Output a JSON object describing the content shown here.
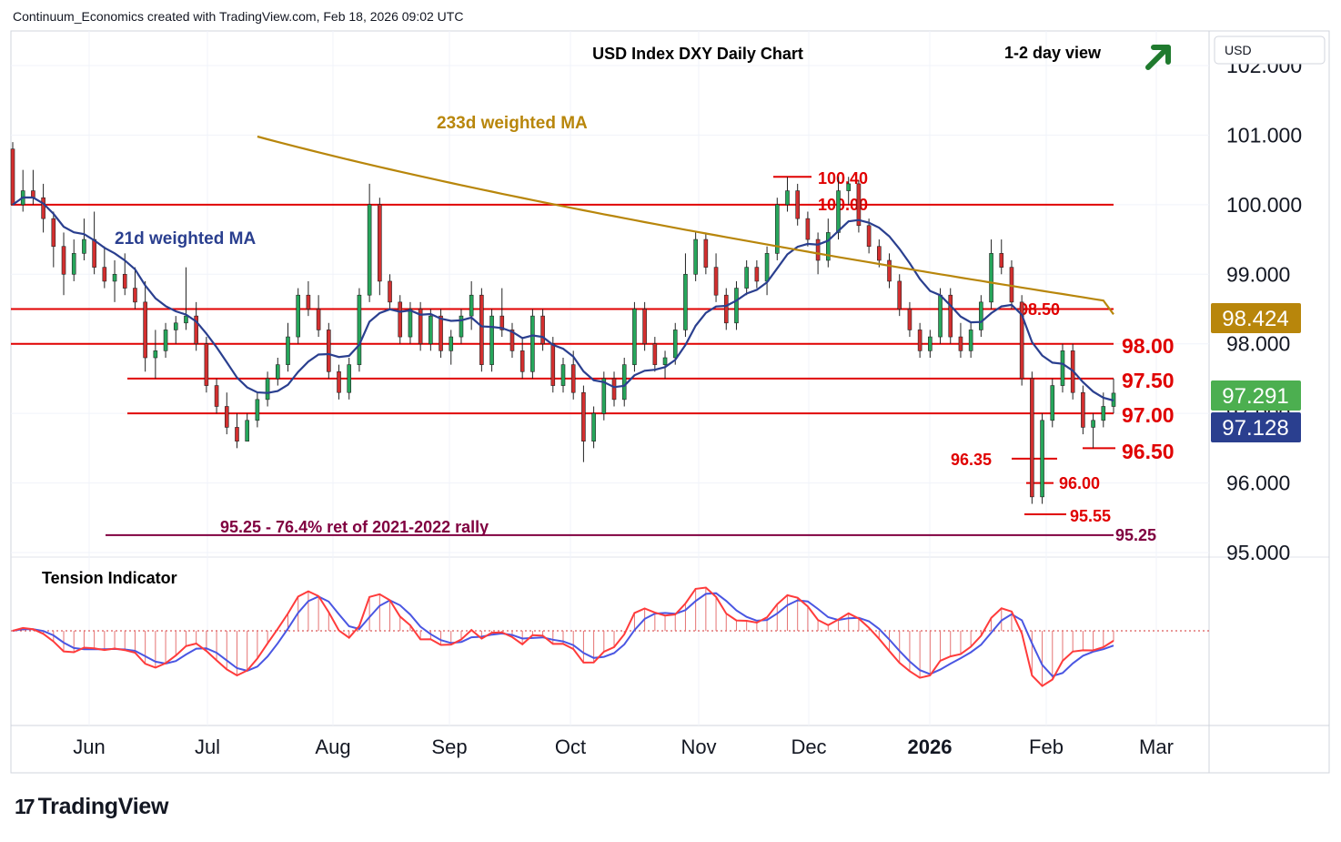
{
  "header": {
    "credit": "Continuum_Economics created with TradingView.com, Feb 18, 2026 09:02 UTC"
  },
  "chart_data": {
    "type": "candlestick",
    "title": "USD Index DXY Daily Chart",
    "view": "1-2 day view",
    "view_direction": "up",
    "symbol": "USD",
    "ylim": [
      95.0,
      102.0
    ],
    "y_ticks": [
      "102.000",
      "101.000",
      "100.000",
      "99.000",
      "98.000",
      "97.000",
      "96.000",
      "95.000"
    ],
    "x_ticks": [
      "Jun",
      "Jul",
      "Aug",
      "Sep",
      "Oct",
      "Nov",
      "Dec",
      "2026",
      "Feb",
      "Mar"
    ],
    "price_badges": [
      {
        "label": "98.424",
        "value": 98.424,
        "color": "#b8860b",
        "text_color": "#ffffff"
      },
      {
        "label": "97.291",
        "value": 97.291,
        "color": "#4caf50",
        "text_color": "#ffffff"
      },
      {
        "label": "97.128",
        "value": 97.128,
        "color": "#2a3f8f",
        "text_color": "#ffffff"
      }
    ],
    "horizontal_levels": [
      {
        "value": 100.0,
        "label": "100.00",
        "color": "#e00000"
      },
      {
        "value": 98.5,
        "label": "98.50",
        "color": "#e00000"
      },
      {
        "value": 98.0,
        "label": "98.00",
        "color": "#e00000"
      },
      {
        "value": 97.5,
        "label": "97.50",
        "color": "#e00000"
      },
      {
        "value": 97.0,
        "label": "97.00",
        "color": "#e00000"
      }
    ],
    "point_levels": [
      {
        "value": 100.4,
        "label": "100.40"
      },
      {
        "value": 96.35,
        "label": "96.35"
      },
      {
        "value": 96.0,
        "label": "96.00"
      },
      {
        "value": 95.55,
        "label": "95.55"
      },
      {
        "value": 96.5,
        "label": "96.50"
      }
    ],
    "retracement": {
      "value": 95.25,
      "label": "95.25 - 76.4% ret of 2021-2022 rally",
      "end_label": "95.25",
      "color": "#800040"
    },
    "series": [
      {
        "name": "233d weighted MA",
        "color": "#b8860b"
      },
      {
        "name": "21d weighted MA",
        "color": "#2a3f8f"
      }
    ],
    "ohlc": [
      [
        100.8,
        100.9,
        100.0,
        100.0
      ],
      [
        100.0,
        100.5,
        99.9,
        100.2
      ],
      [
        100.2,
        100.5,
        100.0,
        100.1
      ],
      [
        100.1,
        100.3,
        99.6,
        99.8
      ],
      [
        99.8,
        99.9,
        99.1,
        99.4
      ],
      [
        99.4,
        99.6,
        98.7,
        99.0
      ],
      [
        99.0,
        99.5,
        98.9,
        99.3
      ],
      [
        99.3,
        99.8,
        99.2,
        99.5
      ],
      [
        99.5,
        99.9,
        99.0,
        99.1
      ],
      [
        99.1,
        99.4,
        98.8,
        98.9
      ],
      [
        98.9,
        99.2,
        98.6,
        99.0
      ],
      [
        99.0,
        99.3,
        98.7,
        98.8
      ],
      [
        98.8,
        99.1,
        98.5,
        98.6
      ],
      [
        98.6,
        98.9,
        97.6,
        97.8
      ],
      [
        97.8,
        98.2,
        97.5,
        97.9
      ],
      [
        97.9,
        98.3,
        97.8,
        98.2
      ],
      [
        98.2,
        98.4,
        98.0,
        98.3
      ],
      [
        98.3,
        99.1,
        98.2,
        98.4
      ],
      [
        98.4,
        98.6,
        97.9,
        98.0
      ],
      [
        98.0,
        98.1,
        97.3,
        97.4
      ],
      [
        97.4,
        97.5,
        97.0,
        97.1
      ],
      [
        97.1,
        97.3,
        96.7,
        96.8
      ],
      [
        96.8,
        97.0,
        96.5,
        96.6
      ],
      [
        96.6,
        97.0,
        96.6,
        96.9
      ],
      [
        96.9,
        97.3,
        96.8,
        97.2
      ],
      [
        97.2,
        97.6,
        97.1,
        97.5
      ],
      [
        97.5,
        97.8,
        97.4,
        97.7
      ],
      [
        97.7,
        98.3,
        97.6,
        98.1
      ],
      [
        98.1,
        98.8,
        98.0,
        98.7
      ],
      [
        98.7,
        98.9,
        98.4,
        98.5
      ],
      [
        98.5,
        98.7,
        98.1,
        98.2
      ],
      [
        98.2,
        98.3,
        97.5,
        97.6
      ],
      [
        97.6,
        97.7,
        97.2,
        97.3
      ],
      [
        97.3,
        97.8,
        97.2,
        97.7
      ],
      [
        97.7,
        98.8,
        97.6,
        98.7
      ],
      [
        98.7,
        100.3,
        98.6,
        100.0
      ],
      [
        100.0,
        100.1,
        98.7,
        98.9
      ],
      [
        98.9,
        99.0,
        98.5,
        98.6
      ],
      [
        98.6,
        98.7,
        98.0,
        98.1
      ],
      [
        98.1,
        98.6,
        98.0,
        98.5
      ],
      [
        98.5,
        98.6,
        97.9,
        98.0
      ],
      [
        98.0,
        98.5,
        97.9,
        98.4
      ],
      [
        98.4,
        98.5,
        97.8,
        97.9
      ],
      [
        97.9,
        98.2,
        97.7,
        98.1
      ],
      [
        98.1,
        98.5,
        98.0,
        98.4
      ],
      [
        98.4,
        98.9,
        98.2,
        98.7
      ],
      [
        98.7,
        98.8,
        97.6,
        97.7
      ],
      [
        97.7,
        98.5,
        97.6,
        98.4
      ],
      [
        98.4,
        98.8,
        98.1,
        98.2
      ],
      [
        98.2,
        98.3,
        97.8,
        97.9
      ],
      [
        97.9,
        98.1,
        97.5,
        97.6
      ],
      [
        97.6,
        98.5,
        97.5,
        98.4
      ],
      [
        98.4,
        98.5,
        97.9,
        98.0
      ],
      [
        98.0,
        98.1,
        97.3,
        97.4
      ],
      [
        97.4,
        97.8,
        97.3,
        97.7
      ],
      [
        97.7,
        97.9,
        97.2,
        97.3
      ],
      [
        97.3,
        97.4,
        96.3,
        96.6
      ],
      [
        96.6,
        97.1,
        96.5,
        97.0
      ],
      [
        97.0,
        97.6,
        96.9,
        97.5
      ],
      [
        97.5,
        97.6,
        97.1,
        97.2
      ],
      [
        97.2,
        97.8,
        97.1,
        97.7
      ],
      [
        97.7,
        98.6,
        97.6,
        98.5
      ],
      [
        98.5,
        98.6,
        97.9,
        98.0
      ],
      [
        98.0,
        98.1,
        97.6,
        97.7
      ],
      [
        97.7,
        97.9,
        97.5,
        97.8
      ],
      [
        97.8,
        98.3,
        97.7,
        98.2
      ],
      [
        98.2,
        99.3,
        98.1,
        99.0
      ],
      [
        99.0,
        99.6,
        98.9,
        99.5
      ],
      [
        99.5,
        99.6,
        99.0,
        99.1
      ],
      [
        99.1,
        99.3,
        98.6,
        98.7
      ],
      [
        98.7,
        98.8,
        98.2,
        98.3
      ],
      [
        98.3,
        98.9,
        98.2,
        98.8
      ],
      [
        98.8,
        99.2,
        98.7,
        99.1
      ],
      [
        99.1,
        99.2,
        98.8,
        98.9
      ],
      [
        98.9,
        99.4,
        98.7,
        99.3
      ],
      [
        99.3,
        100.1,
        99.2,
        100.0
      ],
      [
        100.0,
        100.4,
        99.9,
        100.2
      ],
      [
        100.2,
        100.3,
        99.7,
        99.8
      ],
      [
        99.8,
        99.9,
        99.4,
        99.5
      ],
      [
        99.5,
        99.6,
        99.0,
        99.2
      ],
      [
        99.2,
        99.8,
        99.1,
        99.6
      ],
      [
        99.6,
        100.4,
        99.5,
        100.2
      ],
      [
        100.2,
        100.4,
        100.0,
        100.3
      ],
      [
        100.3,
        100.35,
        99.6,
        99.7
      ],
      [
        99.7,
        99.8,
        99.3,
        99.4
      ],
      [
        99.4,
        99.5,
        99.1,
        99.2
      ],
      [
        99.2,
        99.3,
        98.8,
        98.9
      ],
      [
        98.9,
        99.0,
        98.4,
        98.5
      ],
      [
        98.5,
        98.6,
        98.1,
        98.2
      ],
      [
        98.2,
        98.3,
        97.8,
        97.9
      ],
      [
        97.9,
        98.2,
        97.8,
        98.1
      ],
      [
        98.1,
        98.8,
        98.0,
        98.7
      ],
      [
        98.7,
        98.8,
        98.0,
        98.1
      ],
      [
        98.1,
        98.3,
        97.8,
        97.9
      ],
      [
        97.9,
        98.3,
        97.8,
        98.2
      ],
      [
        98.2,
        98.7,
        98.1,
        98.6
      ],
      [
        98.6,
        99.5,
        98.5,
        99.3
      ],
      [
        99.3,
        99.5,
        99.0,
        99.1
      ],
      [
        99.1,
        99.2,
        98.5,
        98.6
      ],
      [
        98.6,
        98.7,
        97.4,
        97.5
      ],
      [
        97.5,
        97.6,
        95.7,
        95.8
      ],
      [
        95.8,
        97.0,
        95.7,
        96.9
      ],
      [
        96.9,
        97.5,
        96.8,
        97.4
      ],
      [
        97.4,
        98.0,
        97.3,
        97.9
      ],
      [
        97.9,
        98.0,
        97.2,
        97.3
      ],
      [
        97.3,
        97.4,
        96.7,
        96.8
      ],
      [
        96.8,
        97.0,
        96.5,
        96.9
      ],
      [
        96.9,
        97.3,
        96.8,
        97.1
      ],
      [
        97.1,
        97.5,
        97.0,
        97.291
      ]
    ]
  },
  "indicator": {
    "title": "Tension Indicator"
  },
  "footer": {
    "logo_mark": "17",
    "brand": "TradingView"
  }
}
